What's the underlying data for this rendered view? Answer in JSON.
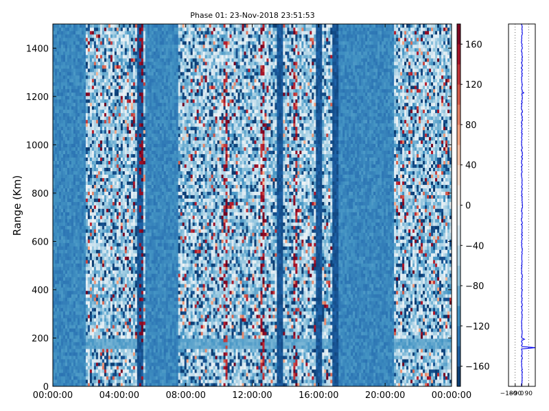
{
  "chart_data": [
    {
      "type": "heatmap",
      "title": "Phase 01: 23-Nov-2018 23:51:53",
      "xlabel": "",
      "ylabel": "Range (Km)",
      "x_ticks": [
        "00:00:00",
        "04:00:00",
        "08:00:00",
        "12:00:00",
        "16:00:00",
        "20:00:00",
        "00:00:00"
      ],
      "x_range_hours": [
        0,
        24
      ],
      "y_ticks": [
        0,
        200,
        400,
        600,
        800,
        1000,
        1200,
        1400
      ],
      "ylim": [
        0,
        1500
      ],
      "colorbar": {
        "ticks": [
          -160,
          -120,
          -80,
          -40,
          0,
          40,
          80,
          120,
          160
        ],
        "range": [
          -180,
          180
        ],
        "colormap": "RdBu_r",
        "low_color": "#053061",
        "mid_color": "#f7f7f7",
        "high_color": "#67001f"
      },
      "noisy_time_bands_hours": [
        [
          2.0,
          5.6
        ],
        [
          7.5,
          17.0
        ],
        [
          20.5,
          24.0
        ]
      ],
      "dense_red_columns_hours": [
        5.3,
        10.4,
        12.6,
        14.6
      ],
      "dark_columns_hours": [
        5.3,
        13.7,
        16.0,
        17.0
      ],
      "ground_echo_range_km": [
        150,
        200
      ]
    },
    {
      "type": "line",
      "title": "",
      "xlabel": "",
      "ylabel": "",
      "x_ticks": [
        "−180",
        "−90",
        "0",
        "90"
      ],
      "xlim": [
        -180,
        180
      ],
      "ylim": [
        0,
        1500
      ],
      "series_color": "#0000ee",
      "profile_centre": 0,
      "profile_noise_amplitude": 8,
      "spikes": [
        {
          "range_km": 160,
          "value": 180
        },
        {
          "range_km": 195,
          "value": 35
        },
        {
          "range_km": 1215,
          "value": 25
        }
      ]
    }
  ]
}
